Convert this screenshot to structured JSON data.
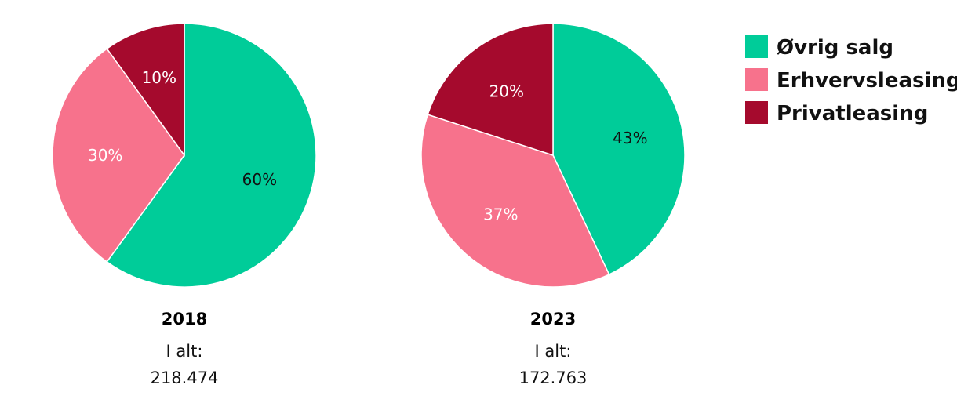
{
  "colors": {
    "ovrig": "#00CC99",
    "erhverv": "#F7728C",
    "privat": "#A50A2D"
  },
  "legend": [
    {
      "label": "Øvrig salg",
      "color": "#00CC99"
    },
    {
      "label": "Erhvervsleasing",
      "color": "#F7728C"
    },
    {
      "label": "Privatleasing",
      "color": "#A50A2D"
    }
  ],
  "chart_data": [
    {
      "type": "pie",
      "title": "2018",
      "total_label": "I alt:",
      "total_value": "218.474",
      "slices": [
        {
          "name": "Øvrig salg",
          "value": 60,
          "label": "60%",
          "color": "#00CC99",
          "text_color": "#111111"
        },
        {
          "name": "Erhvervsleasing",
          "value": 30,
          "label": "30%",
          "color": "#F7728C",
          "text_color": "#ffffff"
        },
        {
          "name": "Privatleasing",
          "value": 10,
          "label": "10%",
          "color": "#A50A2D",
          "text_color": "#ffffff"
        }
      ]
    },
    {
      "type": "pie",
      "title": "2023",
      "total_label": "I alt:",
      "total_value": "172.763",
      "slices": [
        {
          "name": "Øvrig salg",
          "value": 43,
          "label": "43%",
          "color": "#00CC99",
          "text_color": "#111111"
        },
        {
          "name": "Erhvervsleasing",
          "value": 37,
          "label": "37%",
          "color": "#F7728C",
          "text_color": "#ffffff"
        },
        {
          "name": "Privatleasing",
          "value": 20,
          "label": "20%",
          "color": "#A50A2D",
          "text_color": "#ffffff"
        }
      ]
    }
  ]
}
